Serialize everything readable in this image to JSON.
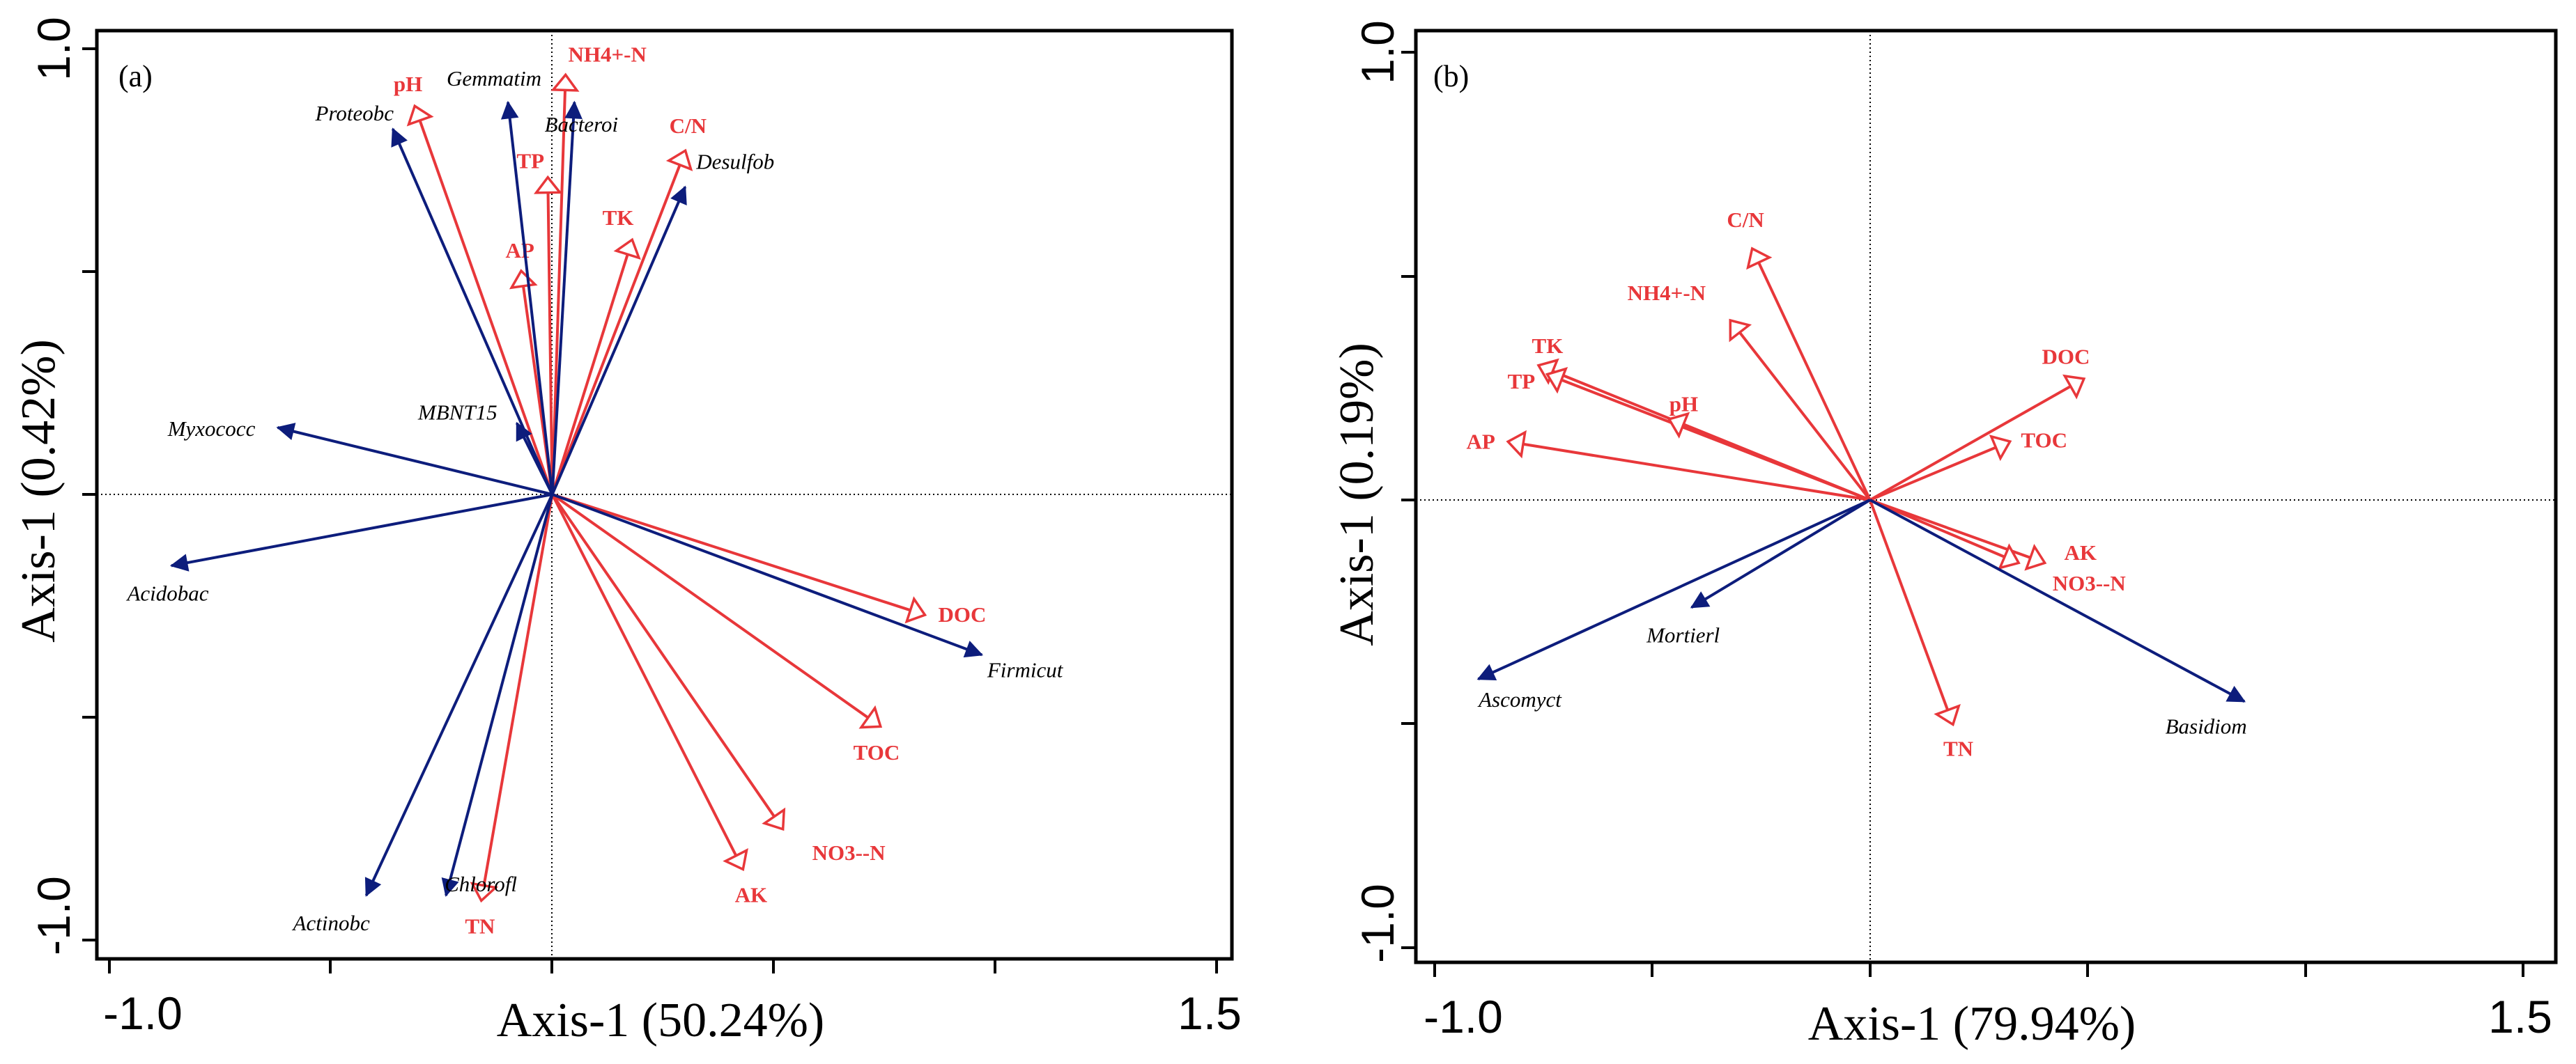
{
  "chart_data": [
    {
      "type": "biplot",
      "panel": "(a)",
      "xlabel": "Axis-1 (50.24%)",
      "ylabel": "Axis-1 (0.42%)",
      "xlim": [
        -1.0,
        1.5
      ],
      "ylim": [
        -1.0,
        1.0
      ],
      "xtick_labels": [
        "-1.0",
        "1.5"
      ],
      "ytick_labels": [
        "1.0",
        "-1.0"
      ],
      "colors": {
        "env": "#e8373a",
        "taxa": "#0d1d7c"
      },
      "env": [
        {
          "name": "pH",
          "x": -0.31,
          "y": 0.87
        },
        {
          "name": "NH4+-N",
          "x": 0.03,
          "y": 0.94
        },
        {
          "name": "TP",
          "x": -0.01,
          "y": 0.71
        },
        {
          "name": "C/N",
          "x": 0.3,
          "y": 0.77
        },
        {
          "name": "TK",
          "x": 0.18,
          "y": 0.57
        },
        {
          "name": "AP",
          "x": -0.07,
          "y": 0.5
        },
        {
          "name": "DOC",
          "x": 0.84,
          "y": -0.27
        },
        {
          "name": "TOC",
          "x": 0.74,
          "y": -0.52
        },
        {
          "name": "NO3--N",
          "x": 0.52,
          "y": -0.75
        },
        {
          "name": "AK",
          "x": 0.43,
          "y": -0.84
        },
        {
          "name": "TN",
          "x": -0.16,
          "y": -0.91
        }
      ],
      "taxa": [
        {
          "name": "Proteobc",
          "x": -0.36,
          "y": 0.82
        },
        {
          "name": "Gemmatim",
          "x": -0.1,
          "y": 0.88
        },
        {
          "name": "Bacteroi",
          "x": 0.05,
          "y": 0.88
        },
        {
          "name": "Desulfob",
          "x": 0.3,
          "y": 0.69
        },
        {
          "name": "MBNT15",
          "x": -0.08,
          "y": 0.16
        },
        {
          "name": "Myxococc",
          "x": -0.62,
          "y": 0.15
        },
        {
          "name": "Acidobac",
          "x": -0.86,
          "y": -0.16
        },
        {
          "name": "Firmicut",
          "x": 0.97,
          "y": -0.36
        },
        {
          "name": "Chloroflx",
          "x": -0.24,
          "y": -0.9
        },
        {
          "name": "Actinobc",
          "x": -0.42,
          "y": -0.9
        }
      ],
      "taxa_labels": {
        "Chloroflx": "Chlorofl"
      }
    },
    {
      "type": "biplot",
      "panel": "(b)",
      "xlabel": "Axis-1 (79.94%)",
      "ylabel": "Axis-1 (0.19%)",
      "xlim": [
        -1.0,
        1.5
      ],
      "ylim": [
        -1.0,
        1.0
      ],
      "xtick_labels": [
        "-1.0",
        "1.5"
      ],
      "ytick_labels": [
        "1.0",
        "-1.0"
      ],
      "colors": {
        "env": "#e8373a",
        "taxa": "#0d1d7c"
      },
      "env": [
        {
          "name": "C/N",
          "x": -0.27,
          "y": 0.56
        },
        {
          "name": "NH4+-N",
          "x": -0.32,
          "y": 0.4
        },
        {
          "name": "TK",
          "x": -0.76,
          "y": 0.3
        },
        {
          "name": "TP",
          "x": -0.74,
          "y": 0.28
        },
        {
          "name": "pH",
          "x": -0.46,
          "y": 0.18
        },
        {
          "name": "AP",
          "x": -0.83,
          "y": 0.13
        },
        {
          "name": "DOC",
          "x": 0.49,
          "y": 0.27
        },
        {
          "name": "TOC",
          "x": 0.32,
          "y": 0.13
        },
        {
          "name": "AK",
          "x": 0.4,
          "y": -0.14
        },
        {
          "name": "NO3--N",
          "x": 0.34,
          "y": -0.14
        },
        {
          "name": "TN",
          "x": 0.19,
          "y": -0.5
        }
      ],
      "taxa": [
        {
          "name": "Ascomyct",
          "x": -0.9,
          "y": -0.4
        },
        {
          "name": "Mortierl",
          "x": -0.41,
          "y": -0.24
        },
        {
          "name": "Basidiom",
          "x": 0.86,
          "y": -0.45
        }
      ]
    }
  ]
}
